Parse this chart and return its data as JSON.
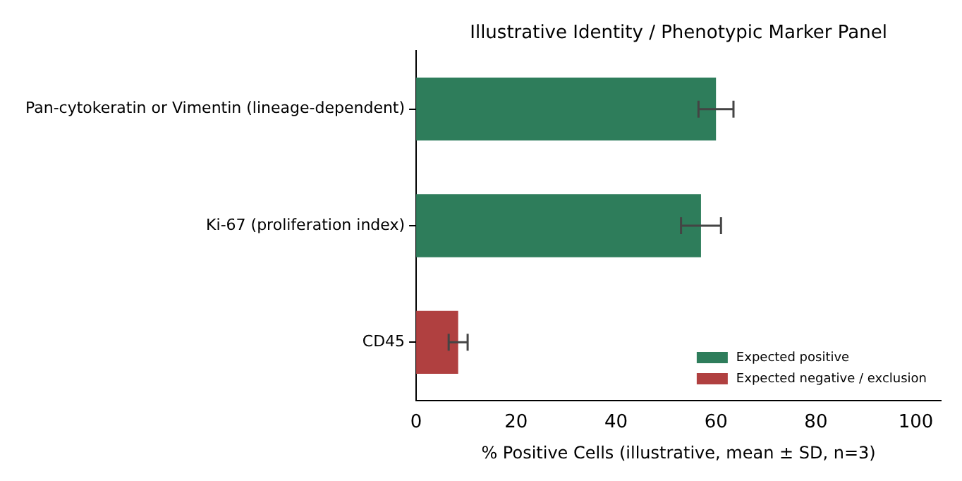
{
  "chart_data": {
    "type": "bar",
    "orientation": "horizontal",
    "stacked": true,
    "title": "Illustrative Identity / Phenotypic Marker Panel",
    "xlabel": "% Positive Cells (illustrative, mean ± SD, n=3)",
    "categories": [
      "Pan-cytokeratin or Vimentin (lineage-dependent)",
      "Ki-67 (proliferation index)",
      "CD45"
    ],
    "series": [
      {
        "name": "Expected positive",
        "color": "#2e7d5b",
        "values": [
          60,
          57,
          null
        ],
        "errors": [
          3.5,
          4,
          null
        ]
      },
      {
        "name": "Expected negative / exclusion",
        "color": "#b04040",
        "values": [
          null,
          null,
          8.4
        ],
        "errors": [
          null,
          null,
          1.9
        ]
      }
    ],
    "xlim": [
      0,
      105
    ],
    "xticks": [
      0,
      20,
      40,
      60,
      80,
      100
    ],
    "grid": false,
    "legend": "bottom right"
  }
}
